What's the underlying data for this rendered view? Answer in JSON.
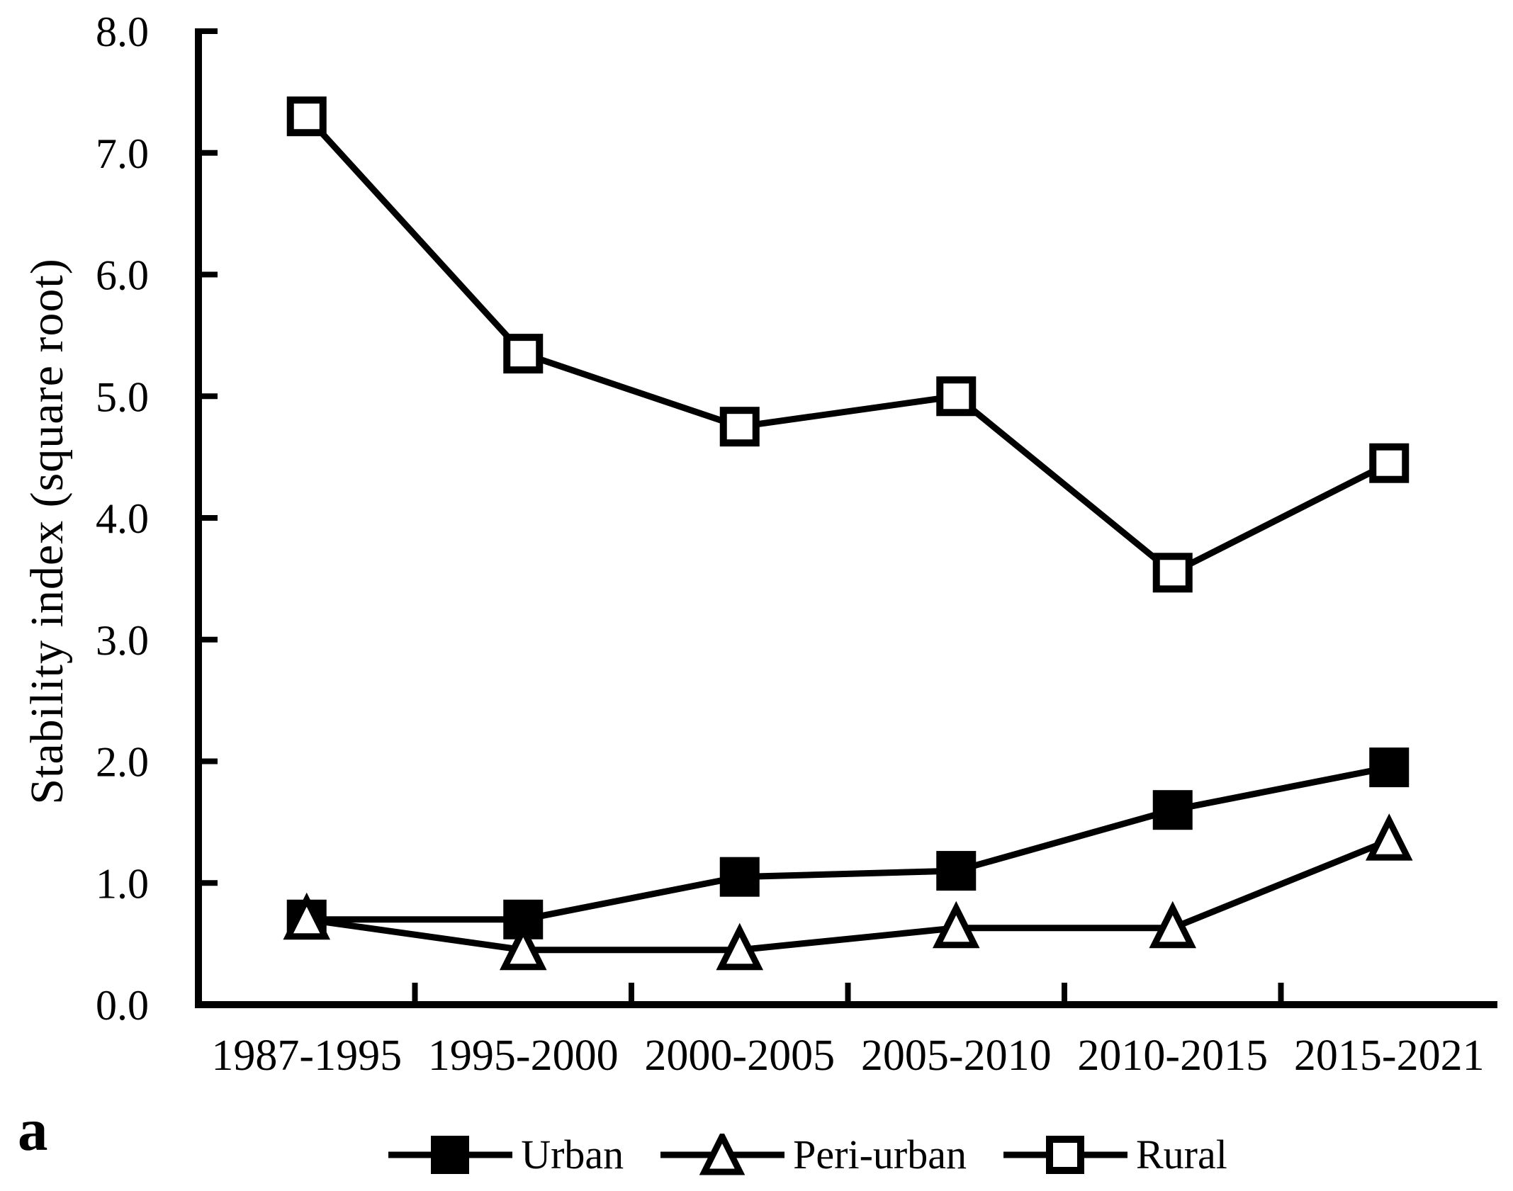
{
  "panel_label": "a",
  "chart_data": {
    "type": "line",
    "title": "",
    "xlabel": "",
    "ylabel": "Stability index (square root)",
    "categories": [
      "1987-1995",
      "1995-2000",
      "2000-2005",
      "2005-2010",
      "2010-2015",
      "2015-2021"
    ],
    "series": [
      {
        "name": "Urban",
        "marker": "filled-square",
        "values": [
          0.7,
          0.7,
          1.05,
          1.1,
          1.6,
          1.95
        ]
      },
      {
        "name": "Peri-urban",
        "marker": "open-triangle",
        "values": [
          0.7,
          0.45,
          0.45,
          0.63,
          0.63,
          1.35
        ]
      },
      {
        "name": "Rural",
        "marker": "open-square",
        "values": [
          7.3,
          5.35,
          4.75,
          5.0,
          3.55,
          4.45
        ]
      }
    ],
    "ylim": [
      0,
      8
    ],
    "yticks": [
      "0.0",
      "1.0",
      "2.0",
      "3.0",
      "4.0",
      "5.0",
      "6.0",
      "7.0",
      "8.0"
    ],
    "grid": false,
    "legend_position": "bottom",
    "line_color": "#000000",
    "background": "#ffffff"
  }
}
